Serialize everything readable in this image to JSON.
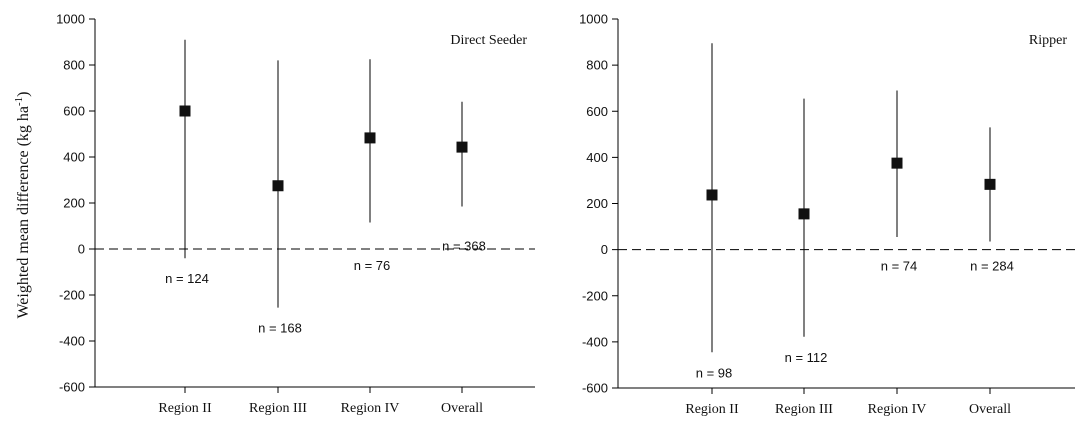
{
  "ylabel": "Weighted mean difference (kg ha",
  "ylabel_sup": "-1",
  "ylabel_close": ")",
  "chart_data": [
    {
      "type": "scatter",
      "title": "Direct Seeder",
      "categories": [
        "Region II",
        "Region III",
        "Region IV",
        "Overall"
      ],
      "values": [
        600,
        275,
        483,
        443
      ],
      "ci_low": [
        -40,
        -255,
        115,
        185
      ],
      "ci_high": [
        910,
        820,
        825,
        640
      ],
      "n_labels": [
        "n = 124",
        "n = 168",
        "n = 76",
        "n = 368"
      ],
      "ylim": [
        -600,
        1000
      ],
      "yticks": [
        "1000",
        "800",
        "600",
        "400",
        "200",
        "0",
        "-200",
        "-400",
        "-600"
      ],
      "reference_line": 0
    },
    {
      "type": "scatter",
      "title": "Ripper",
      "categories": [
        "Region II",
        "Region III",
        "Region IV",
        "Overall"
      ],
      "values": [
        237,
        155,
        375,
        283
      ],
      "ci_low": [
        -445,
        -378,
        55,
        35
      ],
      "ci_high": [
        895,
        655,
        690,
        530
      ],
      "n_labels": [
        "n = 98",
        "n = 112",
        "n = 74",
        "n = 284"
      ],
      "ylim": [
        -600,
        1000
      ],
      "yticks": [
        "1000",
        "800",
        "600",
        "400",
        "200",
        "0",
        "-200",
        "-400",
        "-600"
      ],
      "reference_line": 0
    }
  ]
}
